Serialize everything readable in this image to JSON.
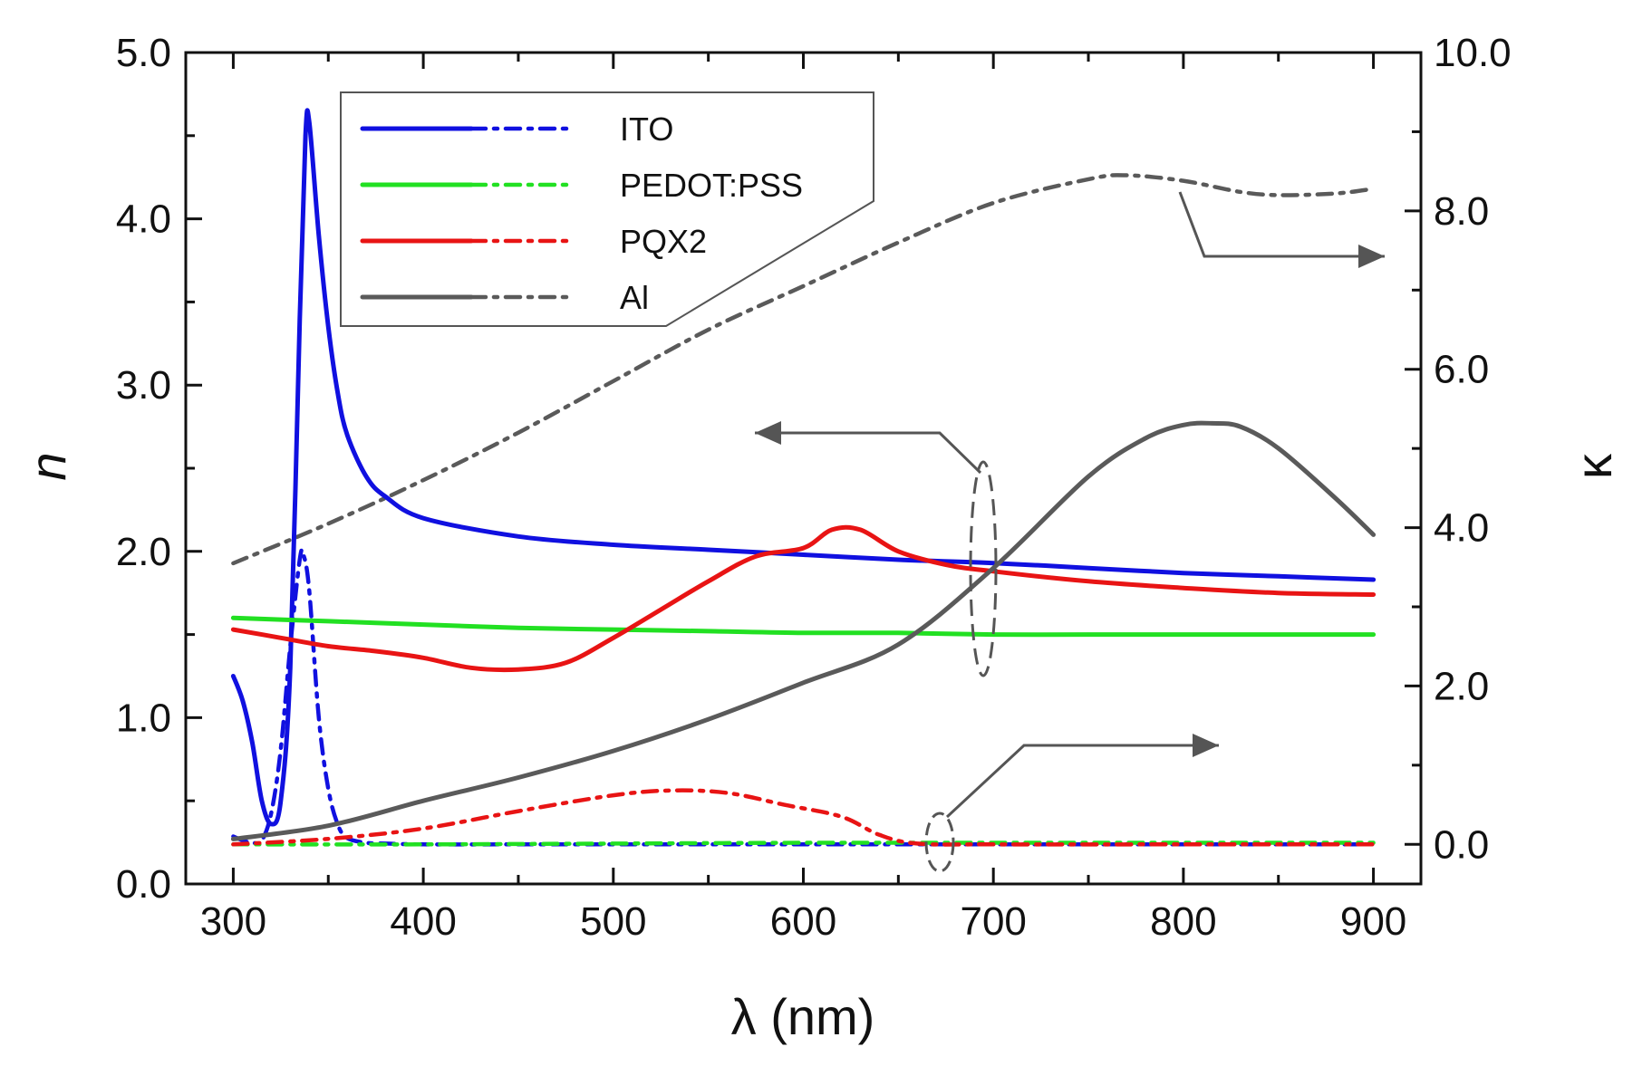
{
  "chart_data": {
    "type": "line",
    "title": "",
    "xlabel": "λ   (nm)",
    "ylabel_left": "n",
    "ylabel_right": "κ",
    "xlim": [
      275,
      925
    ],
    "ylim_left": [
      0.0,
      5.0
    ],
    "ylim_right": [
      -0.5,
      10.0
    ],
    "xticks": [
      300,
      400,
      500,
      600,
      700,
      800,
      900
    ],
    "xtick_labels": [
      "300",
      "400",
      "500",
      "600",
      "700",
      "800",
      "900"
    ],
    "yticks_left": [
      0.0,
      1.0,
      2.0,
      3.0,
      4.0,
      5.0
    ],
    "ytick_labels_left": [
      "0.0",
      "1.0",
      "2.0",
      "3.0",
      "4.0",
      "5.0"
    ],
    "yticks_right": [
      0.0,
      2.0,
      4.0,
      6.0,
      8.0,
      10.0
    ],
    "ytick_labels_right": [
      "0.0",
      "2.0",
      "4.0",
      "6.0",
      "8.0",
      "10.0"
    ],
    "grid": false,
    "legend_position": "top-left",
    "legend": [
      {
        "label": "ITO",
        "color": "#1010e0"
      },
      {
        "label": "PEDOT:PSS",
        "color": "#22e022"
      },
      {
        "label": "PQX2",
        "color": "#e81414"
      },
      {
        "label": "Al",
        "color": "#5a5a5a"
      }
    ],
    "series": [
      {
        "name": "ITO n",
        "axis": "left",
        "style": "solid",
        "color": "#1010e0",
        "x": [
          300,
          305,
          310,
          315,
          320,
          325,
          330,
          335,
          338,
          340,
          345,
          350,
          355,
          360,
          370,
          380,
          400,
          450,
          500,
          550,
          600,
          650,
          700,
          750,
          800,
          850,
          900
        ],
        "y": [
          1.25,
          1.1,
          0.85,
          0.5,
          0.36,
          0.5,
          1.3,
          3.4,
          4.5,
          4.58,
          3.9,
          3.35,
          2.95,
          2.7,
          2.45,
          2.33,
          2.2,
          2.09,
          2.04,
          2.01,
          1.98,
          1.95,
          1.93,
          1.9,
          1.87,
          1.85,
          1.83
        ]
      },
      {
        "name": "ITO κ",
        "axis": "right",
        "style": "dashdot",
        "color": "#1010e0",
        "x": [
          300,
          305,
          310,
          315,
          320,
          325,
          330,
          335,
          337,
          340,
          345,
          350,
          355,
          360,
          370,
          380,
          400,
          450,
          500,
          600,
          700,
          800,
          900
        ],
        "y": [
          0.1,
          0.05,
          0.02,
          0.05,
          0.4,
          1.2,
          2.5,
          3.6,
          3.65,
          3.2,
          1.6,
          0.7,
          0.25,
          0.08,
          0.02,
          0.01,
          0.0,
          0.0,
          0.0,
          0.0,
          0.0,
          0.0,
          0.0
        ]
      },
      {
        "name": "PEDOT:PSS n",
        "axis": "left",
        "style": "solid",
        "color": "#22e022",
        "x": [
          300,
          350,
          400,
          450,
          500,
          550,
          600,
          650,
          700,
          750,
          800,
          850,
          900
        ],
        "y": [
          1.6,
          1.58,
          1.56,
          1.54,
          1.53,
          1.52,
          1.51,
          1.51,
          1.5,
          1.5,
          1.5,
          1.5,
          1.5
        ]
      },
      {
        "name": "PEDOT:PSS κ",
        "axis": "right",
        "style": "dashdot",
        "color": "#22e022",
        "x": [
          300,
          400,
          500,
          600,
          700,
          800,
          900
        ],
        "y": [
          0.0,
          0.0,
          0.01,
          0.02,
          0.02,
          0.02,
          0.02
        ]
      },
      {
        "name": "PQX2 n",
        "axis": "left",
        "style": "solid",
        "color": "#e81414",
        "x": [
          300,
          325,
          350,
          375,
          400,
          425,
          450,
          475,
          500,
          525,
          550,
          575,
          600,
          615,
          630,
          650,
          675,
          700,
          750,
          800,
          850,
          900
        ],
        "y": [
          1.53,
          1.48,
          1.43,
          1.4,
          1.36,
          1.3,
          1.29,
          1.33,
          1.48,
          1.65,
          1.82,
          1.97,
          2.02,
          2.13,
          2.13,
          2.0,
          1.92,
          1.88,
          1.82,
          1.78,
          1.75,
          1.74
        ]
      },
      {
        "name": "PQX2 κ",
        "axis": "right",
        "style": "dashdot",
        "color": "#e81414",
        "x": [
          300,
          350,
          400,
          450,
          500,
          530,
          560,
          590,
          620,
          640,
          660,
          700,
          800,
          900
        ],
        "y": [
          0.0,
          0.07,
          0.2,
          0.42,
          0.62,
          0.68,
          0.65,
          0.5,
          0.35,
          0.12,
          0.01,
          0.0,
          0.0,
          0.0
        ]
      },
      {
        "name": "Al n",
        "axis": "left",
        "style": "solid",
        "color": "#5a5a5a",
        "x": [
          300,
          350,
          400,
          450,
          500,
          550,
          600,
          650,
          700,
          750,
          780,
          800,
          815,
          830,
          850,
          880,
          900
        ],
        "y": [
          0.27,
          0.35,
          0.5,
          0.64,
          0.8,
          0.99,
          1.21,
          1.44,
          1.9,
          2.45,
          2.68,
          2.76,
          2.77,
          2.75,
          2.62,
          2.32,
          2.1
        ]
      },
      {
        "name": "Al κ",
        "axis": "right",
        "style": "dashdot",
        "color": "#5a5a5a",
        "x": [
          300,
          350,
          400,
          450,
          500,
          550,
          600,
          650,
          700,
          750,
          770,
          800,
          830,
          850,
          880,
          900
        ],
        "y": [
          3.55,
          4.05,
          4.6,
          5.2,
          5.85,
          6.5,
          7.05,
          7.6,
          8.1,
          8.4,
          8.45,
          8.38,
          8.24,
          8.2,
          8.22,
          8.28
        ]
      }
    ],
    "annotations": [
      {
        "type": "ellipse-arrow",
        "target_axis": "left",
        "description": "points to left axis"
      },
      {
        "type": "arrow",
        "target_axis": "right",
        "description": "points to right axis"
      },
      {
        "type": "ellipse-arrow",
        "target_axis": "right",
        "description": "points to right axis"
      }
    ]
  }
}
